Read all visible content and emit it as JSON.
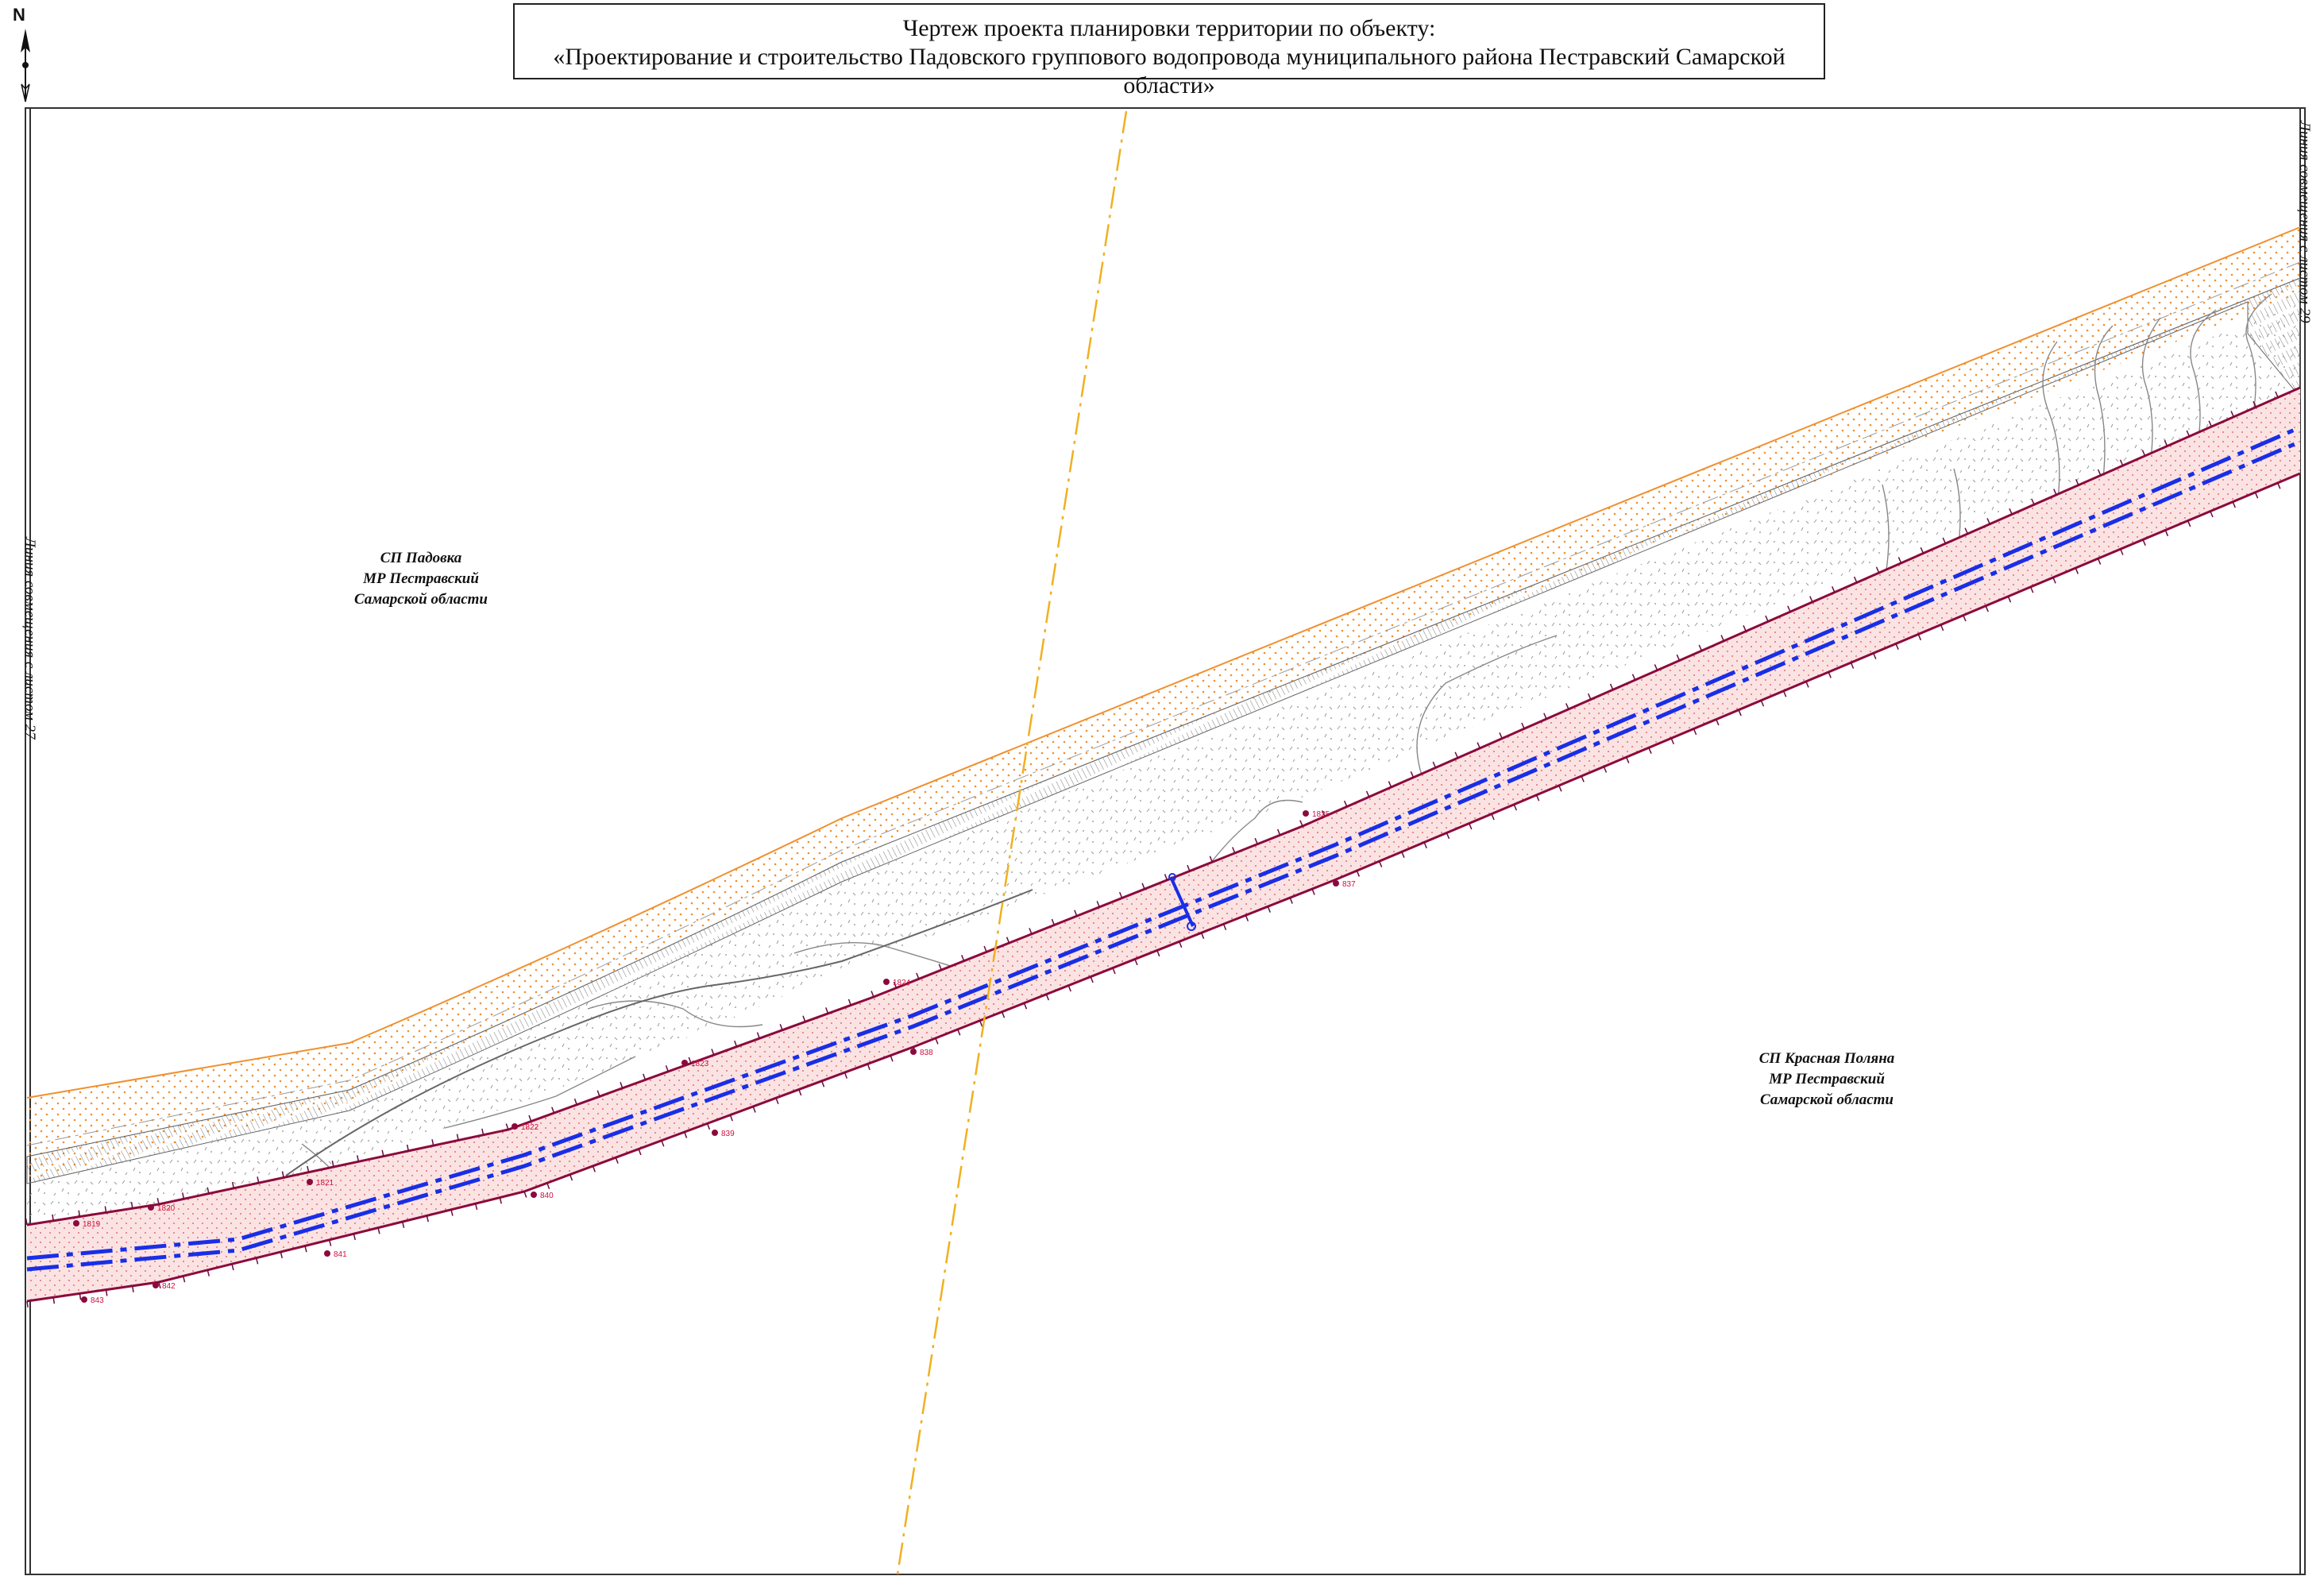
{
  "title": {
    "line1": "Чертеж проекта планировки территории по объекту:",
    "line2": "«Проектирование и строительство Падовского группового водопровода муниципального района Пестравский Самарской области»"
  },
  "north_arrow": {
    "label": "N"
  },
  "regions": {
    "north_west": {
      "line1": "СП Падовка",
      "line2": "МР Пестравский",
      "line3": "Самарской области"
    },
    "south_east": {
      "line1": "СП Красная Поляна",
      "line2": "МР Пестравский",
      "line3": "Самарской области"
    }
  },
  "match_lines": {
    "left": "Линия совмещения с листом 27",
    "right": "Линия совмещения с листом 29"
  },
  "boundary_points": {
    "north_line": [
      "1819",
      "1820",
      "1821",
      "1822",
      "1823",
      "1824",
      "1825"
    ],
    "south_line": [
      "843",
      "842",
      "841",
      "840",
      "839",
      "838",
      "837"
    ]
  },
  "colors": {
    "pipeline": "#1a2ee6",
    "red_line": "#8b0a3c",
    "zone_fill": "#f8d8d8",
    "road_edge": "#f09030",
    "boundary_dashdot": "#f0b020"
  }
}
